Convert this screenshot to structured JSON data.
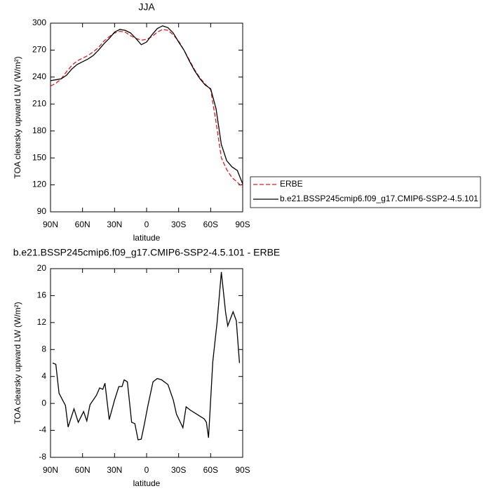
{
  "chart_data": [
    {
      "type": "line",
      "title": "JJA",
      "x_label": "latitude",
      "y_label": "TOA clearsky upward LW (W/m²)",
      "x": [
        90,
        85,
        80,
        75,
        70,
        65,
        60,
        55,
        50,
        45,
        40,
        35,
        30,
        25,
        20,
        15,
        10,
        5,
        0,
        -5,
        -10,
        -15,
        -20,
        -25,
        -30,
        -35,
        -40,
        -45,
        -50,
        -55,
        -60,
        -65,
        -70,
        -75,
        -80,
        -85,
        -90
      ],
      "series": [
        {
          "name": "ERBE",
          "color": "#e41a1c",
          "dashed": true,
          "values": [
            230,
            233,
            238,
            246,
            253,
            258,
            261,
            264,
            268,
            273,
            280,
            285,
            289,
            291,
            290,
            286,
            283,
            281,
            282,
            285,
            290,
            293,
            292,
            287,
            280,
            270,
            259,
            248,
            239,
            232,
            226,
            190,
            150,
            137,
            128,
            123,
            117
          ]
        },
        {
          "name": "b.e21.BSSP245cmip6.f09_g17.CMIP6-SSP2-4.5.101",
          "color": "#000000",
          "dashed": false,
          "values": [
            236,
            237,
            238,
            242,
            249,
            254,
            257,
            260,
            264,
            270,
            277,
            283,
            290,
            293,
            292,
            289,
            283,
            276,
            279,
            287,
            294,
            297,
            295,
            289,
            279,
            270,
            258,
            247,
            238,
            231,
            227,
            205,
            165,
            147,
            140,
            136,
            121
          ]
        }
      ],
      "xlim": [
        90,
        -90
      ],
      "xticks": [
        {
          "value": 90,
          "label": "90N"
        },
        {
          "value": 60,
          "label": "60N"
        },
        {
          "value": 30,
          "label": "30N"
        },
        0,
        {
          "value": -30,
          "label": "30S"
        },
        {
          "value": -60,
          "label": "60S"
        },
        {
          "value": -90,
          "label": "90S"
        }
      ],
      "ylim": [
        90,
        300
      ],
      "yticks": [
        90,
        120,
        150,
        180,
        210,
        240,
        270,
        300
      ],
      "legend": "outside-right"
    },
    {
      "type": "line",
      "title": "b.e21.BSSP245cmip6.f09_g17.CMIP6-SSP2-4.5.101 - ERBE",
      "x_label": "latitude",
      "y_label": "TOA clearsky upward LW (W/m²)",
      "x": [
        88,
        85,
        82,
        76,
        73.5,
        68,
        64,
        59,
        56,
        53,
        47,
        44,
        41,
        39,
        35,
        30,
        26,
        23,
        21,
        18,
        14,
        11,
        8,
        5,
        2,
        -1,
        -6,
        -10,
        -14,
        -20,
        -25,
        -28,
        -34,
        -37,
        -41,
        -45,
        -49,
        -54,
        -56,
        -58,
        -62,
        -66,
        -70,
        -74,
        -76,
        -81,
        -84,
        -87
      ],
      "values": [
        6,
        5.8,
        1.5,
        -0.3,
        -3.5,
        -0.8,
        -2.8,
        -1.2,
        -2.6,
        -0.2,
        1.2,
        2.3,
        2.1,
        3,
        -2.4,
        0.5,
        2.5,
        2.5,
        3.5,
        3.2,
        -2.8,
        -3,
        -5.4,
        -5.3,
        -3,
        -0.5,
        3.2,
        3.7,
        3.5,
        2.8,
        0.5,
        -1.6,
        -3.6,
        -0.5,
        -1,
        -1.4,
        -1.8,
        -2.3,
        -2.8,
        -5.1,
        6.2,
        12,
        19.5,
        13.5,
        11.5,
        13.6,
        12.3,
        6
      ],
      "color": "#000000",
      "xlim": [
        90,
        -90
      ],
      "xticks": [
        {
          "value": 90,
          "label": "90N"
        },
        {
          "value": 60,
          "label": "60N"
        },
        {
          "value": 30,
          "label": "30N"
        },
        0,
        {
          "value": -30,
          "label": "30S"
        },
        {
          "value": -60,
          "label": "60S"
        },
        {
          "value": -90,
          "label": "90S"
        }
      ],
      "ylim": [
        -8,
        20
      ],
      "yticks": [
        -8,
        -4,
        0,
        4,
        8,
        12,
        16,
        20
      ]
    }
  ]
}
